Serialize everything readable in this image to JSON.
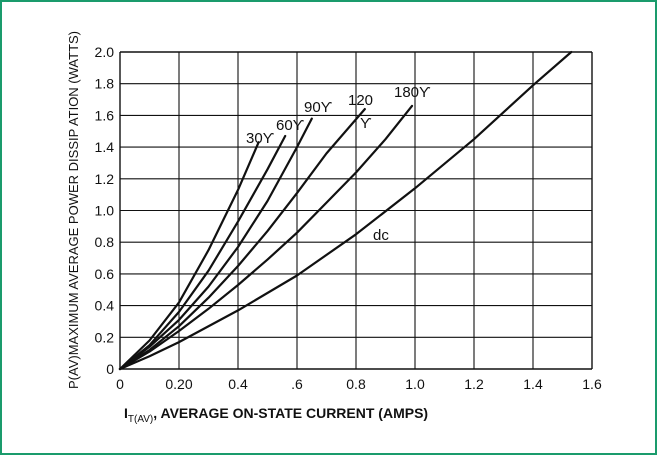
{
  "frame_border_color": "#1a9b6c",
  "chart_data": {
    "type": "line",
    "xlabel_prefix": "I",
    "xlabel_sub": "T(AV)",
    "xlabel": ", AVERAGE ON-STATE CURRENT (AMPS)",
    "ylabel": "P(AV)MAXIMUM AVERAGE POWER DISSIP ATION (WATTS)",
    "xlim": [
      0,
      1.6
    ],
    "ylim": [
      0,
      2.0
    ],
    "x_ticks": [
      {
        "value": 0,
        "label": "0"
      },
      {
        "value": 0.2,
        "label": "0.20"
      },
      {
        "value": 0.4,
        "label": "0.4"
      },
      {
        "value": 0.6,
        "label": ".6"
      },
      {
        "value": 0.8,
        "label": "0.8"
      },
      {
        "value": 1.0,
        "label": "1.0"
      },
      {
        "value": 1.2,
        "label": "1.2"
      },
      {
        "value": 1.4,
        "label": "1.4"
      },
      {
        "value": 1.6,
        "label": "1.6"
      }
    ],
    "y_ticks": [
      {
        "value": 0,
        "label": "0"
      },
      {
        "value": 0.2,
        "label": "0.2"
      },
      {
        "value": 0.4,
        "label": "0.4"
      },
      {
        "value": 0.6,
        "label": "0.6"
      },
      {
        "value": 0.8,
        "label": "0.8"
      },
      {
        "value": 1.0,
        "label": "1.0"
      },
      {
        "value": 1.2,
        "label": "1.2"
      },
      {
        "value": 1.4,
        "label": "1.4"
      },
      {
        "value": 1.6,
        "label": "1.6"
      },
      {
        "value": 1.8,
        "label": "1.8"
      },
      {
        "value": 2.0,
        "label": "2.0"
      }
    ],
    "grid": true,
    "series": [
      {
        "name": "30°",
        "label": "30ϒ",
        "x": [
          0,
          0.1,
          0.2,
          0.3,
          0.4,
          0.47
        ],
        "y": [
          0,
          0.18,
          0.42,
          0.75,
          1.13,
          1.43
        ]
      },
      {
        "name": "60°",
        "label": "60ϒ",
        "x": [
          0,
          0.1,
          0.2,
          0.3,
          0.4,
          0.5,
          0.56
        ],
        "y": [
          0,
          0.15,
          0.36,
          0.62,
          0.93,
          1.26,
          1.47
        ]
      },
      {
        "name": "90°",
        "label": "90ϒ",
        "x": [
          0,
          0.1,
          0.2,
          0.3,
          0.4,
          0.5,
          0.6,
          0.65
        ],
        "y": [
          0,
          0.14,
          0.31,
          0.52,
          0.77,
          1.06,
          1.4,
          1.58
        ]
      },
      {
        "name": "120°",
        "label": "120",
        "label2": "ϒ",
        "x": [
          0,
          0.1,
          0.2,
          0.3,
          0.4,
          0.5,
          0.6,
          0.7,
          0.83
        ],
        "y": [
          0,
          0.12,
          0.27,
          0.45,
          0.65,
          0.87,
          1.11,
          1.36,
          1.64
        ]
      },
      {
        "name": "180°",
        "label": "180ϒ",
        "x": [
          0,
          0.1,
          0.2,
          0.3,
          0.4,
          0.5,
          0.6,
          0.7,
          0.8,
          0.9,
          0.99
        ],
        "y": [
          0,
          0.11,
          0.24,
          0.38,
          0.53,
          0.69,
          0.86,
          1.05,
          1.24,
          1.45,
          1.66
        ]
      },
      {
        "name": "dc",
        "label": "dc",
        "x": [
          0,
          0.1,
          0.2,
          0.4,
          0.6,
          0.8,
          1.0,
          1.2,
          1.4,
          1.53
        ],
        "y": [
          0,
          0.08,
          0.17,
          0.37,
          0.59,
          0.85,
          1.14,
          1.45,
          1.79,
          2.0
        ]
      }
    ]
  }
}
